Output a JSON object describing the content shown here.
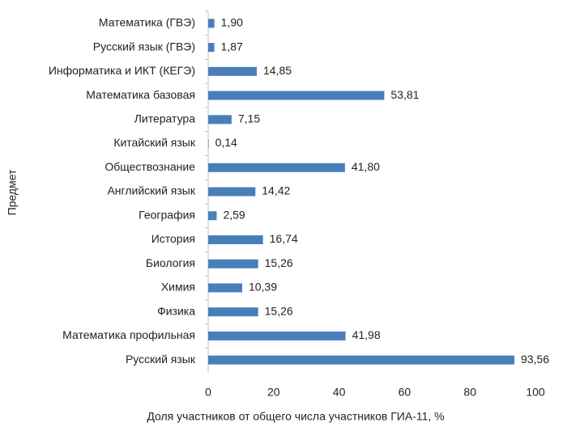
{
  "chart_data": {
    "type": "bar",
    "orientation": "horizontal",
    "x_label": "Доля участников от общего числа участников ГИА-11, %",
    "y_label": "Предмет",
    "categories": [
      "Математика (ГВЭ)",
      "Русский язык (ГВЭ)",
      "Информатика и ИКТ (КЕГЭ)",
      "Математика базовая",
      "Литература",
      "Китайский язык",
      "Обществознание",
      "Английский язык",
      "География",
      "История",
      "Биология",
      "Химия",
      "Физика",
      "Математика профильная",
      "Русский язык"
    ],
    "values": [
      1.9,
      1.87,
      14.85,
      53.81,
      7.15,
      0.14,
      41.8,
      14.42,
      2.59,
      16.74,
      15.26,
      10.39,
      15.26,
      41.98,
      93.56
    ],
    "value_labels": [
      "1,90",
      "1,87",
      "14,85",
      "53,81",
      "7,15",
      "0,14",
      "41,80",
      "14,42",
      "2,59",
      "16,74",
      "15,26",
      "10,39",
      "15,26",
      "41,98",
      "93,56"
    ],
    "color": "#4a7ebb",
    "xlim": [
      0,
      100
    ],
    "xticks": [
      0,
      20,
      40,
      60,
      80,
      100
    ],
    "grid": false
  }
}
